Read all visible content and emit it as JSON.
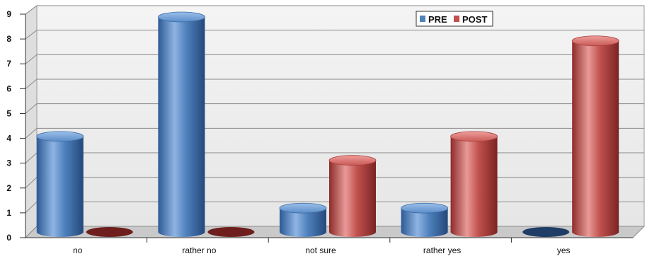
{
  "chart_data": {
    "type": "bar",
    "categories": [
      "no",
      "rather no",
      "not sure",
      "rather yes",
      "yes"
    ],
    "series": [
      {
        "name": "PRE",
        "values": [
          4,
          9,
          1,
          1,
          0
        ],
        "color": "#4f81bd"
      },
      {
        "name": "POST",
        "values": [
          0,
          0,
          3,
          4,
          8
        ],
        "color": "#c0504d"
      }
    ],
    "ylim": [
      0,
      9
    ],
    "yticks": [
      0,
      1,
      2,
      3,
      4,
      5,
      6,
      7,
      8,
      9
    ],
    "grid": true,
    "legend_position": "top-right",
    "style": "3d-cylinder"
  }
}
